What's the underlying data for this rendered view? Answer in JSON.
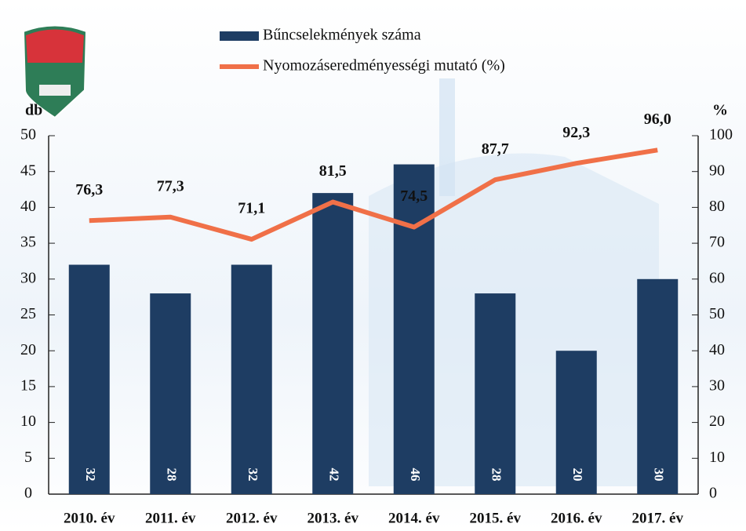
{
  "chart_data": {
    "type": "bar",
    "categories": [
      "2010. év",
      "2011. év",
      "2012. év",
      "2013. év",
      "2014. év",
      "2015. év",
      "2016. év",
      "2017. év"
    ],
    "series": [
      {
        "name": "Bűncselekmények száma",
        "type": "bar",
        "color": "#1e3d63",
        "values": [
          32,
          28,
          32,
          42,
          46,
          28,
          20,
          30
        ]
      },
      {
        "name": "Nyomozáseredményességi mutató (%)",
        "type": "line",
        "axis": "y2",
        "color": "#f07048",
        "values": [
          76.3,
          77.3,
          71.1,
          81.5,
          74.5,
          87.7,
          92.3,
          96.0
        ],
        "value_labels": [
          "76,3",
          "77,3",
          "71,1",
          "81,5",
          "74,5",
          "87,7",
          "92,3",
          "96,0"
        ]
      }
    ],
    "ylabel": "db",
    "y2label": "%",
    "ylim": [
      0,
      50
    ],
    "yticks": [
      0,
      5,
      10,
      15,
      20,
      25,
      30,
      35,
      40,
      45,
      50
    ],
    "y2lim": [
      0,
      100
    ],
    "y2ticks": [
      0,
      10,
      20,
      30,
      40,
      50,
      60,
      70,
      80,
      90,
      100
    ]
  }
}
